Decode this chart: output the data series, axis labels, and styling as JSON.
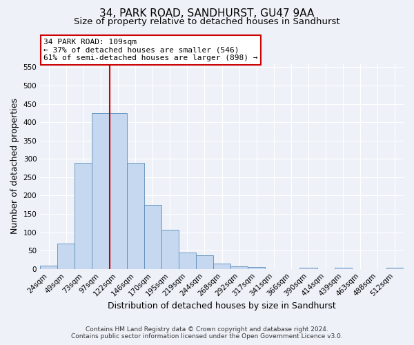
{
  "title": "34, PARK ROAD, SANDHURST, GU47 9AA",
  "subtitle": "Size of property relative to detached houses in Sandhurst",
  "xlabel": "Distribution of detached houses by size in Sandhurst",
  "ylabel": "Number of detached properties",
  "bar_labels": [
    "24sqm",
    "49sqm",
    "73sqm",
    "97sqm",
    "122sqm",
    "146sqm",
    "170sqm",
    "195sqm",
    "219sqm",
    "244sqm",
    "268sqm",
    "292sqm",
    "317sqm",
    "341sqm",
    "366sqm",
    "390sqm",
    "414sqm",
    "439sqm",
    "463sqm",
    "488sqm",
    "512sqm"
  ],
  "bar_heights": [
    8,
    70,
    290,
    425,
    425,
    290,
    175,
    106,
    44,
    38,
    14,
    7,
    5,
    0,
    0,
    3,
    0,
    3,
    0,
    0,
    3
  ],
  "bar_color": "#c5d8f0",
  "bar_edge_color": "#5b8db8",
  "vline_x": 3.5,
  "vline_color": "#cc0000",
  "annotation_title": "34 PARK ROAD: 109sqm",
  "annotation_line1": "← 37% of detached houses are smaller (546)",
  "annotation_line2": "61% of semi-detached houses are larger (898) →",
  "annotation_box_color": "#ffffff",
  "annotation_box_edge": "#cc0000",
  "ylim": [
    0,
    560
  ],
  "yticks": [
    0,
    50,
    100,
    150,
    200,
    250,
    300,
    350,
    400,
    450,
    500,
    550
  ],
  "footer_line1": "Contains HM Land Registry data © Crown copyright and database right 2024.",
  "footer_line2": "Contains public sector information licensed under the Open Government Licence v3.0.",
  "background_color": "#eef2f8",
  "grid_color": "#ffffff",
  "title_fontsize": 11,
  "subtitle_fontsize": 9.5,
  "axis_label_fontsize": 9,
  "tick_fontsize": 7.5,
  "footer_fontsize": 6.5,
  "annotation_fontsize": 8
}
